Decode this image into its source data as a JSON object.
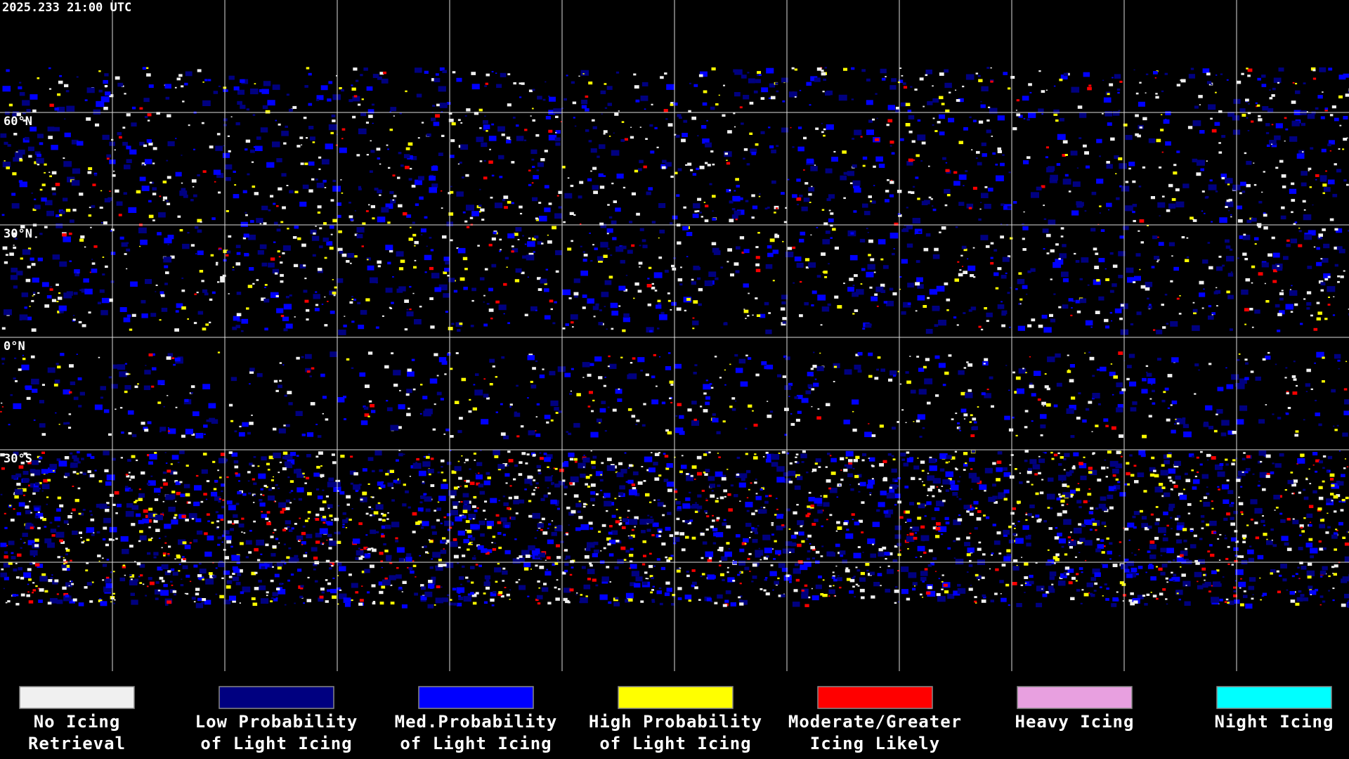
{
  "timestamp": "2025.233 21:00 UTC",
  "latitude_labels": [
    "60°N",
    "30°N",
    "0°N",
    "30°S"
  ],
  "legend": [
    {
      "lines": [
        "No Icing",
        "Retrieval"
      ],
      "color": "#f0f0f0"
    },
    {
      "lines": [
        "Low Probability",
        "of Light Icing"
      ],
      "color": "#000080"
    },
    {
      "lines": [
        "Med.Probability",
        "of Light Icing"
      ],
      "color": "#0000ff"
    },
    {
      "lines": [
        "High Probability",
        "of Light Icing"
      ],
      "color": "#ffff00"
    },
    {
      "lines": [
        "Moderate/Greater",
        "Icing Likely"
      ],
      "color": "#ff0000"
    },
    {
      "lines": [
        "Heavy Icing"
      ],
      "color": "#e8a0e0"
    },
    {
      "lines": [
        "Night Icing"
      ],
      "color": "#00ffff"
    }
  ]
}
